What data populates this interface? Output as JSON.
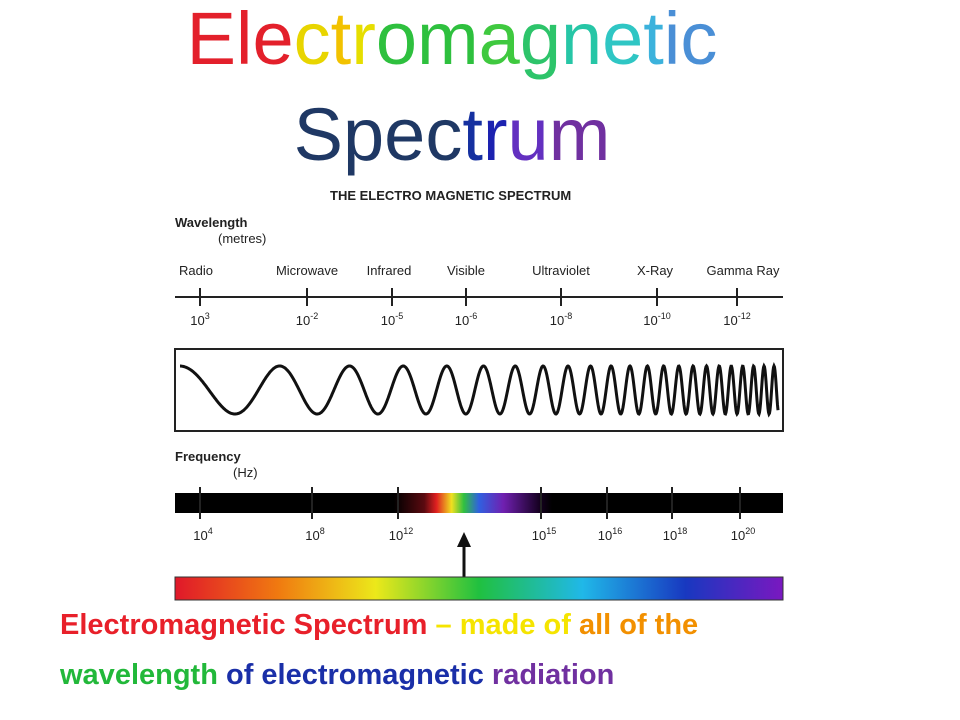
{
  "title": {
    "line1": "Electromagnetic",
    "line1_colors": [
      "#e3202b",
      "#e3202b",
      "#e3202b",
      "#e8d500",
      "#f2c200",
      "#e6de00",
      "#2ec03e",
      "#2ec03e",
      "#3fc93f",
      "#2dc46a",
      "#26c6a6",
      "#2fc6c4",
      "#3cb2dc",
      "#4a8fd6",
      "#4a8fd6"
    ],
    "line2": "Spectrum",
    "line2_colors": [
      "#1f3864",
      "#1f3864",
      "#1f3864",
      "#1f3864",
      "#1530a0",
      "#1c22b0",
      "#6330c0",
      "#7030a0"
    ]
  },
  "diagram": {
    "heading": "THE ELECTRO MAGNETIC SPECTRUM",
    "wavelength_label": "Wavelength",
    "wavelength_unit": "(metres)",
    "bands": [
      {
        "name": "Radio",
        "wavelength": {
          "base": "10",
          "exponent": "3"
        }
      },
      {
        "name": "Microwave",
        "wavelength": {
          "base": "10",
          "exponent": "-2"
        }
      },
      {
        "name": "Infrared",
        "wavelength": {
          "base": "10",
          "exponent": "-5"
        }
      },
      {
        "name": "Visible",
        "wavelength": {
          "base": "10",
          "exponent": "-6"
        }
      },
      {
        "name": "Ultraviolet",
        "wavelength": {
          "base": "10",
          "exponent": "-8"
        }
      },
      {
        "name": "X-Ray",
        "wavelength": {
          "base": "10",
          "exponent": "-10"
        }
      },
      {
        "name": "Gamma Ray",
        "wavelength": {
          "base": "10",
          "exponent": "-12"
        }
      }
    ],
    "frequency_label": "Frequency",
    "frequency_unit": "(Hz)",
    "frequencies": [
      {
        "base": "10",
        "exponent": "4"
      },
      {
        "base": "10",
        "exponent": "8"
      },
      {
        "base": "10",
        "exponent": "12"
      },
      {
        "base": "10",
        "exponent": "15"
      },
      {
        "base": "10",
        "exponent": "16"
      },
      {
        "base": "10",
        "exponent": "18"
      },
      {
        "base": "10",
        "exponent": "20"
      }
    ]
  },
  "caption": {
    "lines": [
      [
        {
          "text": "Electromagnetic Spectrum",
          "color": "#e8202a"
        },
        {
          "text": " – made of ",
          "color": "#f5e400"
        },
        {
          "text": "all of the",
          "color": "#f29000"
        }
      ],
      [
        {
          "text": "wavelength",
          "color": "#22b83a"
        },
        {
          "text": " of electromagnetic ",
          "color": "#1a2fa8"
        },
        {
          "text": "radiation",
          "color": "#7030a0"
        }
      ]
    ]
  }
}
